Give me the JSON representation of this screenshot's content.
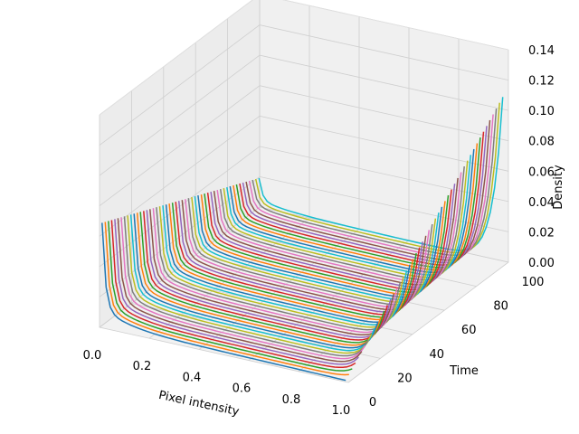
{
  "chart_data": {
    "type": "line",
    "projection": "3d",
    "title": "",
    "xlabel": "Pixel intensity",
    "ylabel": "Time",
    "zlabel": "Density",
    "xlim": [
      0.0,
      1.0
    ],
    "ylim": [
      0,
      100
    ],
    "zlim": [
      0.0,
      0.14
    ],
    "x_ticks": [
      "0.0",
      "0.2",
      "0.4",
      "0.6",
      "0.8",
      "1.0"
    ],
    "y_ticks": [
      "0",
      "20",
      "40",
      "60",
      "80",
      "100"
    ],
    "z_ticks": [
      "0.00",
      "0.02",
      "0.04",
      "0.06",
      "0.08",
      "0.10",
      "0.12",
      "0.14"
    ],
    "grid": true,
    "legend": "none",
    "series_count": 50,
    "time_start": 0,
    "time_step": 2,
    "profile_description": "Each series is a density curve over pixel intensity at one time step; density is high near intensity 0 (~0.12 at t=0) and decays towards 0, while the spike near intensity 1.0 grows with time (up to ~0.14 at t=98).",
    "left_peak_range": [
      0.12,
      0.03
    ],
    "right_peak_range": [
      0.0,
      0.14
    ],
    "colors": [
      "#1f77b4",
      "#ff7f0e",
      "#2ca02c",
      "#d62728",
      "#9467bd",
      "#8c564b",
      "#e377c2",
      "#7f7f7f",
      "#bcbd22",
      "#17becf"
    ]
  }
}
